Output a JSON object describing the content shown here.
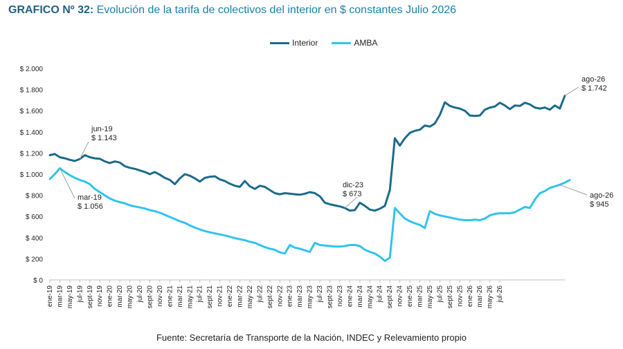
{
  "title_lead": "GRAFICO Nº 32:",
  "title_rest": " Evolución de la tarifa de colectivos del interior en $ constantes Julio 2026",
  "source": "Fuente: Secretaría de Transporte de la Nación, INDEC y Relevamiento propio",
  "colors": {
    "interior": "#1a6b8a",
    "amba": "#2ec4ef"
  },
  "chart_data": {
    "type": "line",
    "title": "Evolución de la tarifa de colectivos del interior en $ constantes Julio 2026",
    "ylim": [
      0,
      2000
    ],
    "yticks": [
      {
        "value": 0,
        "label": "$ 0"
      },
      {
        "value": 200,
        "label": "$ 200"
      },
      {
        "value": 400,
        "label": "$ 400"
      },
      {
        "value": 600,
        "label": "$ 600"
      },
      {
        "value": 800,
        "label": "$ 800"
      },
      {
        "value": 1000,
        "label": "$ 1.000"
      },
      {
        "value": 1200,
        "label": "$ 1.200"
      },
      {
        "value": 1400,
        "label": "$ 1.400"
      },
      {
        "value": 1600,
        "label": "$ 1.600"
      },
      {
        "value": 1800,
        "label": "$ 1.800"
      },
      {
        "value": 2000,
        "label": "$ 2.000"
      }
    ],
    "legend_position": "top-center",
    "grid": false,
    "x_tick_labels": [
      "ene-19",
      "mar-19",
      "may-19",
      "jul-19",
      "sept-19",
      "nov-19",
      "ene-20",
      "mar-20",
      "may-20",
      "jul-20",
      "sept-20",
      "nov-20",
      "ene-21",
      "mar-21",
      "may-21",
      "jul-21",
      "sept-21",
      "nov-21",
      "ene-22",
      "mar-22",
      "may-22",
      "jul-22",
      "sept-22",
      "nov-22",
      "ene-23",
      "mar-23",
      "may-23",
      "jul-23",
      "sept-23",
      "nov-23",
      "ene-24",
      "mar-24",
      "may-24",
      "jul-24",
      "sept-24",
      "nov-24",
      "ene-25",
      "mar-25",
      "may-25",
      "jul-25",
      "sept-25",
      "nov-25",
      "ene-26",
      "mar-26",
      "may-26",
      "jul-26"
    ],
    "series": [
      {
        "name": "Interior",
        "values": [
          1180,
          1190,
          1160,
          1150,
          1135,
          1125,
          1143,
          1180,
          1160,
          1150,
          1145,
          1120,
          1105,
          1120,
          1110,
          1075,
          1060,
          1050,
          1035,
          1020,
          1000,
          1020,
          995,
          965,
          945,
          905,
          960,
          1000,
          985,
          960,
          930,
          965,
          975,
          980,
          950,
          935,
          910,
          890,
          880,
          935,
          885,
          860,
          890,
          880,
          850,
          820,
          810,
          820,
          815,
          810,
          805,
          815,
          830,
          820,
          790,
          730,
          715,
          705,
          695,
          680,
          655,
          660,
          730,
          700,
          665,
          655,
          673,
          700,
          850,
          1340,
          1270,
          1340,
          1390,
          1410,
          1420,
          1460,
          1450,
          1480,
          1560,
          1680,
          1645,
          1630,
          1620,
          1600,
          1555,
          1550,
          1555,
          1610,
          1630,
          1640,
          1675,
          1650,
          1615,
          1650,
          1645,
          1675,
          1660,
          1630,
          1620,
          1630,
          1610,
          1650,
          1620,
          1742
        ]
      },
      {
        "name": "AMBA",
        "values": [
          955,
          1000,
          1056,
          1020,
          990,
          965,
          945,
          930,
          905,
          860,
          830,
          800,
          770,
          750,
          735,
          725,
          705,
          695,
          685,
          675,
          660,
          650,
          635,
          615,
          595,
          575,
          555,
          540,
          515,
          495,
          478,
          462,
          450,
          440,
          430,
          420,
          408,
          395,
          385,
          375,
          360,
          350,
          330,
          310,
          295,
          285,
          260,
          250,
          330,
          305,
          295,
          280,
          265,
          350,
          330,
          325,
          320,
          315,
          315,
          320,
          330,
          330,
          320,
          285,
          265,
          250,
          220,
          180,
          210,
          680,
          630,
          580,
          555,
          535,
          520,
          490,
          650,
          625,
          610,
          600,
          590,
          580,
          570,
          565,
          565,
          570,
          565,
          580,
          610,
          625,
          630,
          630,
          630,
          640,
          665,
          690,
          680,
          760,
          820,
          840,
          870,
          885,
          900,
          920,
          945
        ]
      }
    ],
    "annotations": [
      {
        "label": "jun-19",
        "value_label": "$ 1.143",
        "series": "Interior"
      },
      {
        "label": "mar-19",
        "value_label": "$ 1.056",
        "series": "AMBA"
      },
      {
        "label": "dic-23",
        "value_label": "$ 673",
        "series": "Interior"
      },
      {
        "label": "ago-26",
        "value_label": "$ 1.742",
        "series": "Interior"
      },
      {
        "label": "ago-26",
        "value_label": "$ 945",
        "series": "AMBA"
      }
    ]
  }
}
